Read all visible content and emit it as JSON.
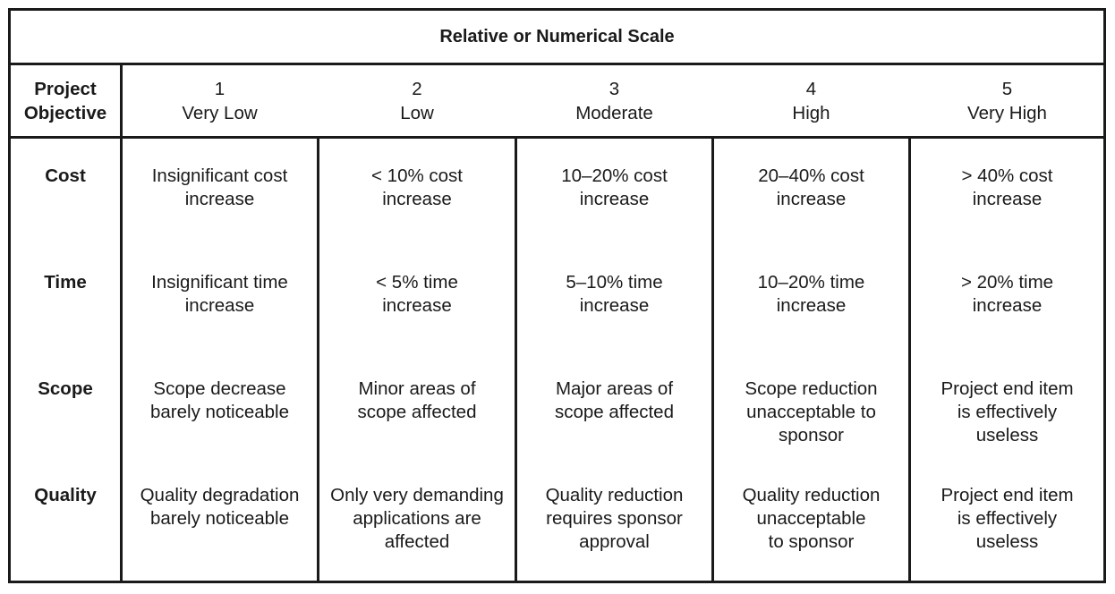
{
  "table": {
    "title": "Relative or Numerical Scale",
    "corner_label_line1": "Project",
    "corner_label_line2": "Objective",
    "levels": [
      {
        "number": "1",
        "label": "Very Low"
      },
      {
        "number": "2",
        "label": "Low"
      },
      {
        "number": "3",
        "label": "Moderate"
      },
      {
        "number": "4",
        "label": "High"
      },
      {
        "number": "5",
        "label": "Very High"
      }
    ],
    "rows": [
      {
        "objective": "Cost",
        "cells": [
          "Insignificant cost\nincrease",
          "< 10% cost\nincrease",
          "10–20% cost\nincrease",
          "20–40% cost\nincrease",
          "> 40% cost\nincrease"
        ]
      },
      {
        "objective": "Time",
        "cells": [
          "Insignificant time\nincrease",
          "< 5% time\nincrease",
          "5–10% time\nincrease",
          "10–20% time\nincrease",
          "> 20% time\nincrease"
        ]
      },
      {
        "objective": "Scope",
        "cells": [
          "Scope decrease\nbarely noticeable",
          "Minor areas of\nscope affected",
          "Major areas of\nscope affected",
          "Scope reduction\nunacceptable to\nsponsor",
          "Project end item\nis effectively\nuseless"
        ]
      },
      {
        "objective": "Quality",
        "cells": [
          "Quality degradation\nbarely noticeable",
          "Only very demanding\napplications are\naffected",
          "Quality reduction\nrequires sponsor\napproval",
          "Quality reduction\nunacceptable\nto sponsor",
          "Project end item\nis effectively\nuseless"
        ]
      }
    ]
  }
}
